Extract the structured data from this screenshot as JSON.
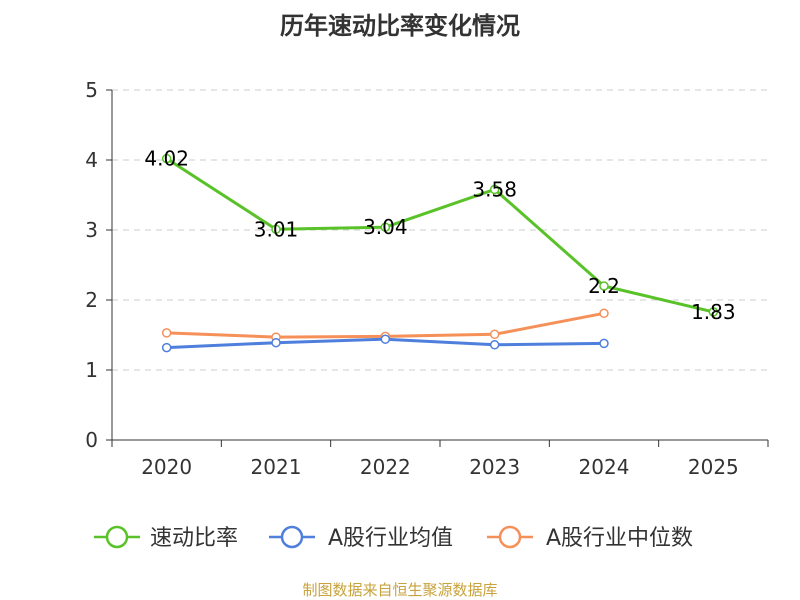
{
  "chart_data": {
    "type": "line",
    "title": "历年速动比率变化情况",
    "categories": [
      "2020",
      "2021",
      "2022",
      "2023",
      "2024",
      "2025"
    ],
    "y_ticks": [
      "0",
      "1",
      "2",
      "3",
      "4",
      "5"
    ],
    "ylim": [
      0,
      5
    ],
    "grid": true,
    "legend_position": "bottom",
    "series": [
      {
        "name": "速动比率",
        "color": "#5ac229",
        "values": [
          4.02,
          3.01,
          3.04,
          3.58,
          2.2,
          1.83
        ],
        "labels": [
          "4.02",
          "3.01",
          "3.04",
          "3.58",
          "2.2",
          "1.83"
        ]
      },
      {
        "name": "A股行业均值",
        "color": "#4f7fdc",
        "values": [
          1.32,
          1.39,
          1.44,
          1.36,
          1.38,
          null
        ]
      },
      {
        "name": "A股行业中位数",
        "color": "#f59059",
        "values": [
          1.53,
          1.47,
          1.48,
          1.51,
          1.81,
          null
        ]
      }
    ]
  },
  "source_text": "制图数据来自恒生聚源数据库"
}
